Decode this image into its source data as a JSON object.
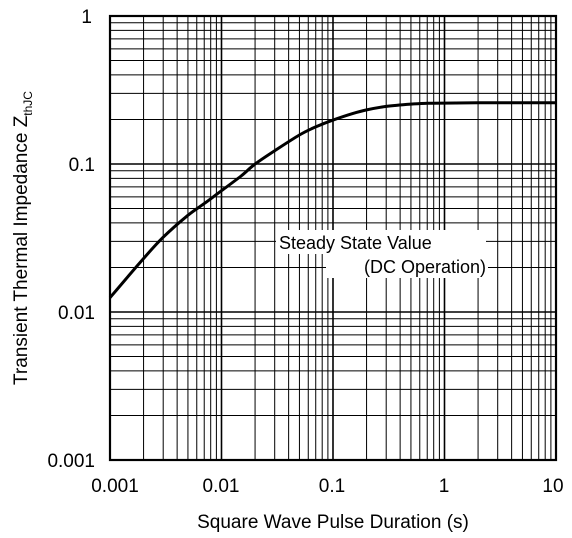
{
  "chart_data": {
    "type": "line",
    "xlabel": "Square Wave Pulse Duration (s)",
    "ylabel": "Transient Thermal Impedance Z",
    "ylabel_subscript": "thJC",
    "x_scale": "log",
    "y_scale": "log",
    "xlim": [
      0.001,
      10
    ],
    "ylim": [
      0.001,
      1
    ],
    "x_tick_labels": [
      "0.001",
      "0.01",
      "0.1",
      "1",
      "10"
    ],
    "y_tick_labels": [
      "1",
      "0.1",
      "0.01",
      "0.001"
    ],
    "grid": true,
    "annotation": [
      "Steady State Value",
      "(DC Operation)"
    ],
    "series": [
      {
        "x": [
          0.001,
          0.002,
          0.003,
          0.005,
          0.007,
          0.01,
          0.015,
          0.02,
          0.03,
          0.05,
          0.07,
          0.1,
          0.15,
          0.2,
          0.3,
          0.5,
          0.7,
          1,
          2,
          5,
          10
        ],
        "y": [
          0.0125,
          0.023,
          0.032,
          0.045,
          0.054,
          0.066,
          0.083,
          0.1,
          0.123,
          0.157,
          0.178,
          0.198,
          0.219,
          0.232,
          0.245,
          0.254,
          0.257,
          0.258,
          0.259,
          0.259,
          0.259
        ]
      }
    ]
  }
}
